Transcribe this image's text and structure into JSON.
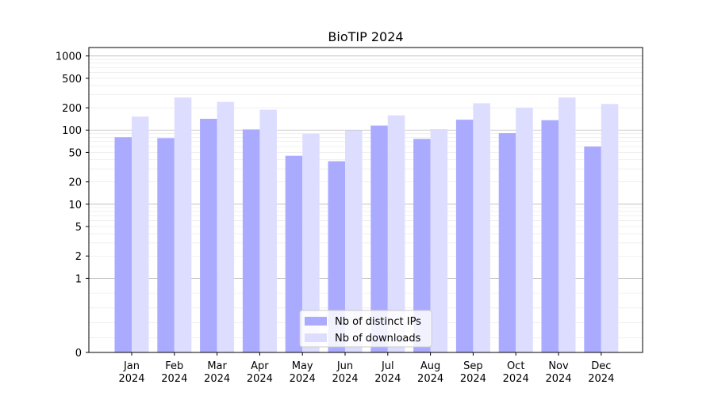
{
  "chart_data": {
    "type": "bar",
    "title": "BioTIP 2024",
    "xlabel": "",
    "ylabel": "",
    "yscale": "symlog",
    "ylim": [
      0,
      1300
    ],
    "categories": [
      "Jan\n2024",
      "Feb\n2024",
      "Mar\n2024",
      "Apr\n2024",
      "May\n2024",
      "Jun\n2024",
      "Jul\n2024",
      "Aug\n2024",
      "Sep\n2024",
      "Oct\n2024",
      "Nov\n2024",
      "Dec\n2024"
    ],
    "yticks": [
      0,
      1,
      2,
      5,
      10,
      20,
      50,
      100,
      200,
      500,
      1000
    ],
    "ytick_labels": [
      "0",
      "1",
      "2",
      "5",
      "10",
      "20",
      "50",
      "100",
      "200",
      "500",
      "1000"
    ],
    "series": [
      {
        "name": "Nb of distinct IPs",
        "color": "#aaaaff",
        "values": [
          80,
          78,
          142,
          102,
          45,
          38,
          115,
          76,
          138,
          91,
          136,
          60
        ]
      },
      {
        "name": "Nb of downloads",
        "color": "#ddddff",
        "values": [
          152,
          275,
          240,
          188,
          89,
          99,
          158,
          103,
          230,
          200,
          275,
          225
        ]
      }
    ],
    "legend_position": "bottom-center",
    "grid": true
  }
}
